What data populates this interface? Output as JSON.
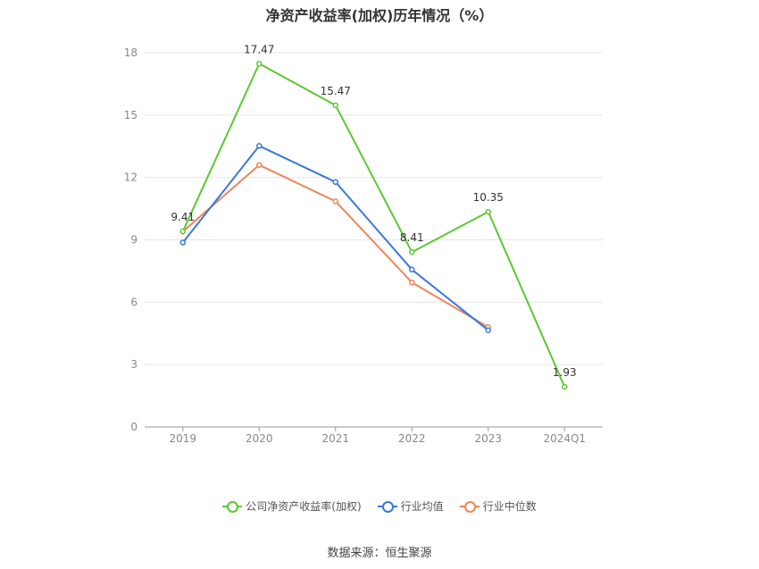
{
  "chart_data": {
    "type": "line",
    "title": "净资产收益率(加权)历年情况（%）",
    "categories": [
      "2019",
      "2020",
      "2021",
      "2022",
      "2023",
      "2024Q1"
    ],
    "ylim": [
      0,
      18
    ],
    "yticks": [
      0,
      3,
      6,
      9,
      12,
      15,
      18
    ],
    "grid": true,
    "legend_position": "bottom",
    "series": [
      {
        "name": "公司净资产收益率(加权)",
        "color": "#5cc832",
        "values": [
          9.41,
          17.47,
          15.47,
          8.41,
          10.35,
          1.93
        ],
        "labels": [
          "9.41",
          "17.47",
          "15.47",
          "8.41",
          "10.35",
          "1.93"
        ]
      },
      {
        "name": "行业均值",
        "color": "#3b78dc",
        "values": [
          8.87,
          13.52,
          11.78,
          7.57,
          4.65,
          null
        ]
      },
      {
        "name": "行业中位数",
        "color": "#f0845a",
        "values": [
          9.4,
          12.6,
          10.85,
          6.95,
          4.8,
          null
        ]
      }
    ]
  },
  "source": "数据来源：恒生聚源"
}
